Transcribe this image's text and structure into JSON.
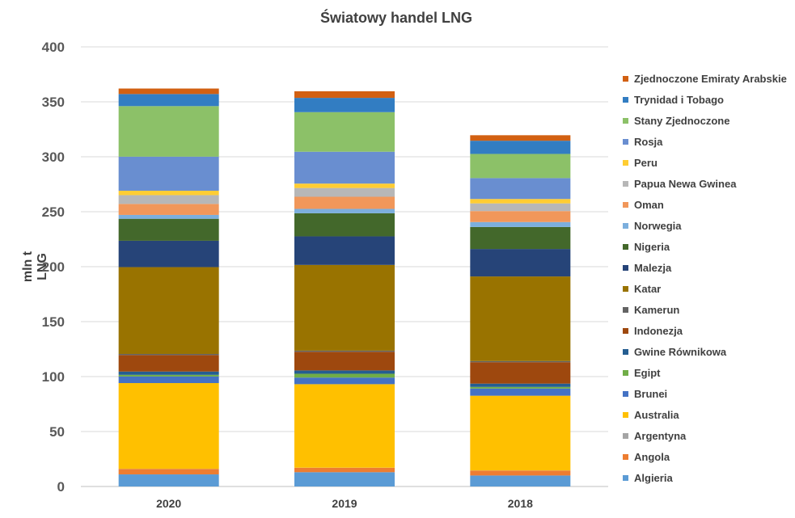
{
  "chart_data": {
    "type": "bar",
    "stacked": true,
    "title": "Światowy handel LNG",
    "xlabel": "",
    "ylabel": "mln t LNG",
    "ylim": [
      0,
      400
    ],
    "yticks": [
      0,
      50,
      100,
      150,
      200,
      250,
      300,
      350,
      400
    ],
    "grid": true,
    "legend_position": "right",
    "categories": [
      "2020",
      "2019",
      "2018"
    ],
    "series": [
      {
        "name": "Algieria",
        "color": "#5b9bd5",
        "values": [
          11,
          13,
          10
        ]
      },
      {
        "name": "Angola",
        "color": "#ed7d31",
        "values": [
          5,
          4,
          4.5
        ]
      },
      {
        "name": "Argentyna",
        "color": "#a5a5a5",
        "values": [
          0.1,
          0.1,
          0.1
        ]
      },
      {
        "name": "Australia",
        "color": "#ffc000",
        "values": [
          78,
          76,
          68
        ]
      },
      {
        "name": "Brunei",
        "color": "#4472c4",
        "values": [
          6,
          6,
          6.5
        ]
      },
      {
        "name": "Egipt",
        "color": "#70ad47",
        "values": [
          1.5,
          3.5,
          1.5
        ]
      },
      {
        "name": "Gwine Równikowa",
        "color": "#255e91",
        "values": [
          3,
          3,
          3
        ]
      },
      {
        "name": "Indonezja",
        "color": "#9e480e",
        "values": [
          15,
          17,
          19.5
        ]
      },
      {
        "name": "Kamerun",
        "color": "#636363",
        "values": [
          1,
          1,
          1
        ]
      },
      {
        "name": "Katar",
        "color": "#997300",
        "values": [
          79,
          78,
          77
        ]
      },
      {
        "name": "Malezja",
        "color": "#264478",
        "values": [
          24,
          26,
          25
        ]
      },
      {
        "name": "Nigeria",
        "color": "#43682b",
        "values": [
          20,
          21,
          20
        ]
      },
      {
        "name": "Norwegia",
        "color": "#7cafdd",
        "values": [
          3.5,
          4,
          4.5
        ]
      },
      {
        "name": "Oman",
        "color": "#f1975a",
        "values": [
          10,
          11,
          10
        ]
      },
      {
        "name": "Papua Newa Gwinea",
        "color": "#b7b7b7",
        "values": [
          8,
          8,
          7
        ]
      },
      {
        "name": "Peru",
        "color": "#ffcd33",
        "values": [
          4,
          4,
          4
        ]
      },
      {
        "name": "Rosja",
        "color": "#698ed0",
        "values": [
          31,
          29,
          19
        ]
      },
      {
        "name": "Stany Zjednoczone",
        "color": "#8cc168",
        "values": [
          46,
          36,
          22
        ]
      },
      {
        "name": "Trynidad i Tobago",
        "color": "#327dc2",
        "values": [
          11,
          13,
          12
        ]
      },
      {
        "name": "Zjednoczone Emiraty Arabskie",
        "color": "#d26012",
        "values": [
          5,
          6,
          5
        ]
      }
    ]
  }
}
